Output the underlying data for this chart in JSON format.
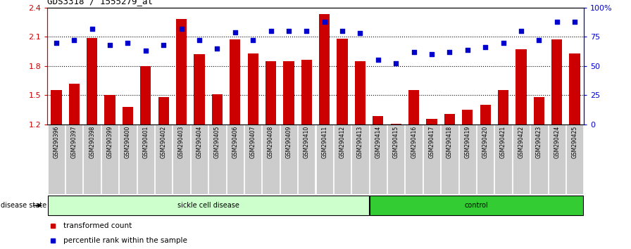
{
  "title": "GDS3318 / 1555279_at",
  "samples": [
    "GSM290396",
    "GSM290397",
    "GSM290398",
    "GSM290399",
    "GSM290400",
    "GSM290401",
    "GSM290402",
    "GSM290403",
    "GSM290404",
    "GSM290405",
    "GSM290406",
    "GSM290407",
    "GSM290408",
    "GSM290409",
    "GSM290410",
    "GSM290411",
    "GSM290412",
    "GSM290413",
    "GSM290414",
    "GSM290415",
    "GSM290416",
    "GSM290417",
    "GSM290418",
    "GSM290419",
    "GSM290420",
    "GSM290421",
    "GSM290422",
    "GSM290423",
    "GSM290424",
    "GSM290425"
  ],
  "bar_values": [
    1.55,
    1.62,
    2.09,
    1.5,
    1.38,
    1.8,
    1.48,
    2.28,
    1.92,
    1.51,
    2.07,
    1.93,
    1.85,
    1.85,
    1.86,
    2.33,
    2.08,
    1.85,
    1.29,
    1.21,
    1.55,
    1.26,
    1.31,
    1.35,
    1.4,
    1.55,
    1.97,
    1.48,
    2.07,
    1.93
  ],
  "percentile_values": [
    70,
    72,
    82,
    68,
    70,
    63,
    68,
    82,
    72,
    65,
    79,
    72,
    80,
    80,
    80,
    88,
    80,
    78,
    55,
    52,
    62,
    60,
    62,
    64,
    66,
    70,
    80,
    72,
    88,
    88
  ],
  "sickle_cell_count": 18,
  "control_count": 12,
  "ylim_left": [
    1.2,
    2.4
  ],
  "ylim_right": [
    0,
    100
  ],
  "bar_color": "#cc0000",
  "dot_color": "#0000cc",
  "grid_color": "black",
  "sickle_bg": "#ccffcc",
  "control_bg": "#33cc33",
  "tick_bg": "#cccccc",
  "label_left_color": "#cc0000",
  "label_right_color": "#0000cc",
  "legend_bar_color": "#cc0000",
  "legend_dot_color": "#0000cc"
}
